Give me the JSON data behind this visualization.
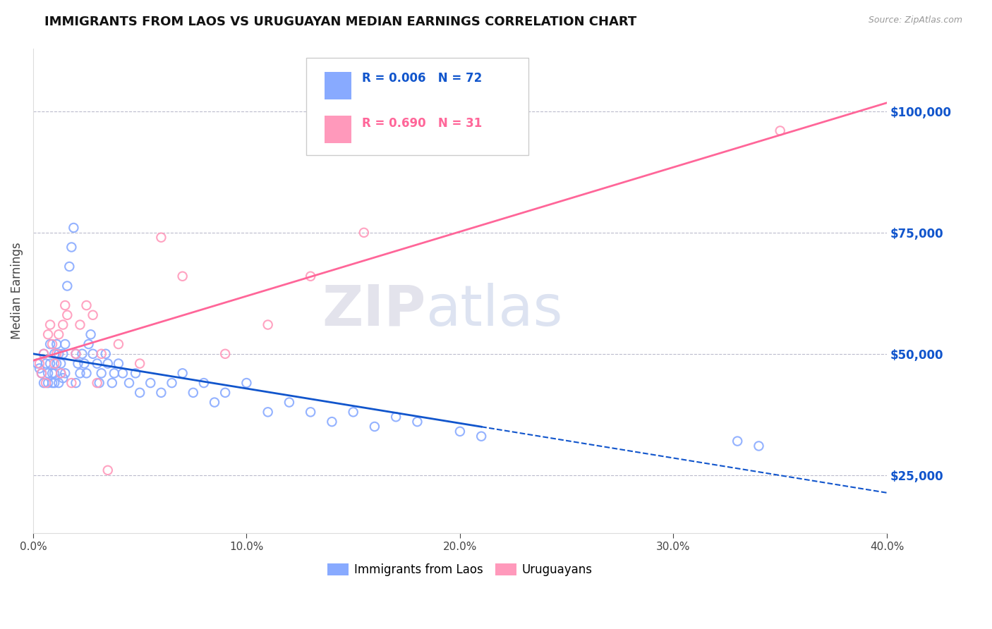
{
  "title": "IMMIGRANTS FROM LAOS VS URUGUAYAN MEDIAN EARNINGS CORRELATION CHART",
  "source_text": "Source: ZipAtlas.com",
  "ylabel": "Median Earnings",
  "legend_label1": "Immigrants from Laos",
  "legend_label2": "Uruguayans",
  "R1": "0.006",
  "N1": "72",
  "R2": "0.690",
  "N2": "31",
  "color1": "#88AAFF",
  "color2": "#FF99BB",
  "trendline1_color": "#1155CC",
  "trendline2_color": "#FF6699",
  "xlim": [
    0.0,
    0.4
  ],
  "ylim": [
    13000,
    113000
  ],
  "yticks": [
    25000,
    50000,
    75000,
    100000
  ],
  "ytick_labels": [
    "$25,000",
    "$50,000",
    "$75,000",
    "$100,000"
  ],
  "xticks": [
    0.0,
    0.1,
    0.2,
    0.3,
    0.4
  ],
  "xtick_labels": [
    "0.0%",
    "10.0%",
    "20.0%",
    "30.0%",
    "40.0%"
  ],
  "laos_x": [
    0.002,
    0.003,
    0.004,
    0.005,
    0.005,
    0.006,
    0.007,
    0.007,
    0.008,
    0.008,
    0.009,
    0.009,
    0.01,
    0.01,
    0.01,
    0.011,
    0.011,
    0.012,
    0.012,
    0.013,
    0.013,
    0.014,
    0.014,
    0.015,
    0.015,
    0.016,
    0.017,
    0.018,
    0.019,
    0.02,
    0.02,
    0.021,
    0.022,
    0.023,
    0.024,
    0.025,
    0.026,
    0.027,
    0.028,
    0.03,
    0.031,
    0.032,
    0.034,
    0.035,
    0.037,
    0.038,
    0.04,
    0.042,
    0.045,
    0.048,
    0.05,
    0.055,
    0.06,
    0.065,
    0.07,
    0.075,
    0.08,
    0.085,
    0.09,
    0.1,
    0.11,
    0.12,
    0.13,
    0.14,
    0.15,
    0.16,
    0.17,
    0.18,
    0.2,
    0.21,
    0.33,
    0.34
  ],
  "laos_y": [
    48000,
    47000,
    46000,
    50000,
    44000,
    48000,
    46000,
    44000,
    52000,
    48000,
    46000,
    44000,
    50000,
    46000,
    44000,
    52000,
    48000,
    50000,
    44000,
    48000,
    46000,
    50000,
    45000,
    52000,
    46000,
    64000,
    68000,
    72000,
    76000,
    50000,
    44000,
    48000,
    46000,
    50000,
    48000,
    46000,
    52000,
    54000,
    50000,
    48000,
    44000,
    46000,
    50000,
    48000,
    44000,
    46000,
    48000,
    46000,
    44000,
    46000,
    42000,
    44000,
    42000,
    44000,
    46000,
    42000,
    44000,
    40000,
    42000,
    44000,
    38000,
    40000,
    38000,
    36000,
    38000,
    35000,
    37000,
    36000,
    34000,
    33000,
    32000,
    31000
  ],
  "uruguay_x": [
    0.003,
    0.004,
    0.005,
    0.006,
    0.007,
    0.008,
    0.009,
    0.01,
    0.011,
    0.012,
    0.013,
    0.014,
    0.015,
    0.016,
    0.018,
    0.02,
    0.022,
    0.025,
    0.028,
    0.03,
    0.032,
    0.035,
    0.04,
    0.05,
    0.06,
    0.07,
    0.09,
    0.11,
    0.13,
    0.155,
    0.35
  ],
  "uruguay_y": [
    48000,
    46000,
    50000,
    44000,
    54000,
    56000,
    52000,
    48000,
    50000,
    54000,
    46000,
    56000,
    60000,
    58000,
    44000,
    50000,
    56000,
    60000,
    58000,
    44000,
    50000,
    26000,
    52000,
    48000,
    74000,
    66000,
    50000,
    56000,
    66000,
    75000,
    96000
  ],
  "trendline1_start_solid_x": 0.0,
  "trendline1_dash_start_x": 0.21,
  "trendline1_end_x": 0.4
}
